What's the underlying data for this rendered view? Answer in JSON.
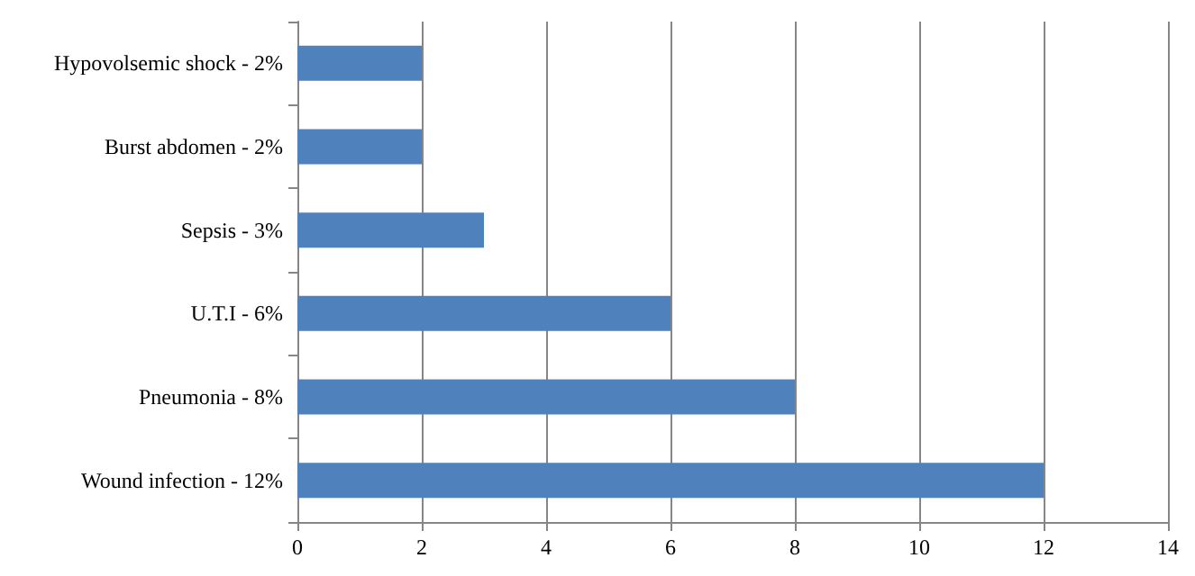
{
  "chart_data": {
    "type": "bar",
    "orientation": "horizontal",
    "categories": [
      "Hypovolsemic shock - 2%",
      "Burst abdomen - 2%",
      "Sepsis - 3%",
      "U.T.I - 6%",
      "Pneumonia - 8%",
      "Wound infection - 12%"
    ],
    "values": [
      2,
      2,
      3,
      6,
      8,
      12
    ],
    "color": "#4f81bd",
    "xlim": [
      0,
      14
    ],
    "xticks": [
      0,
      2,
      4,
      6,
      8,
      10,
      12,
      14
    ],
    "grid": "x"
  }
}
